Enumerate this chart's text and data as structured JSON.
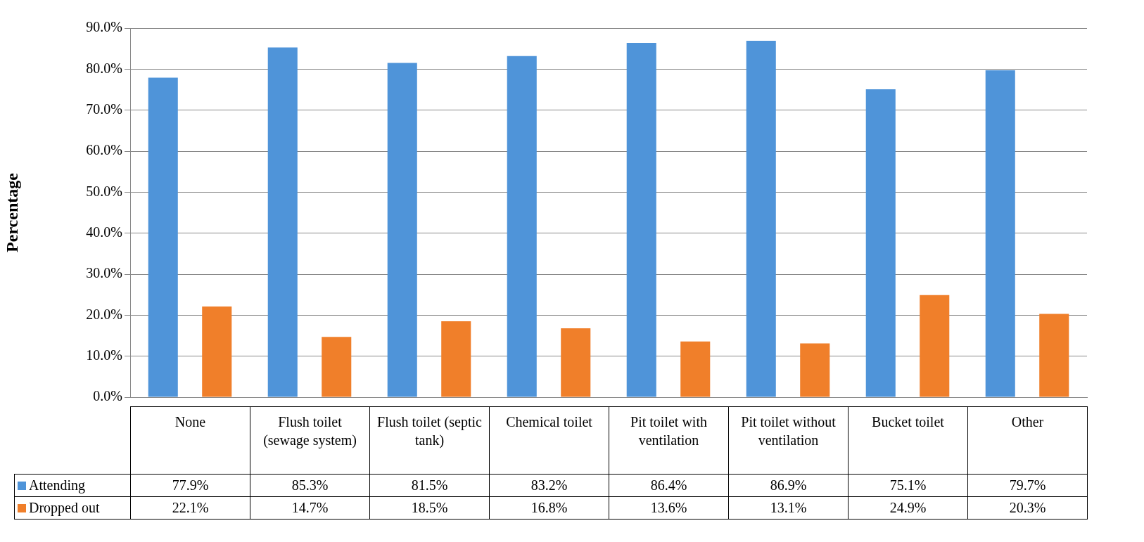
{
  "chart_data": {
    "type": "bar",
    "ylabel": "Percentage",
    "categories": [
      "None",
      "Flush toilet (sewage system)",
      "Flush toilet (septic tank)",
      "Chemical toilet",
      "Pit toilet with ventilation",
      "Pit toilet without ventilation",
      "Bucket toilet",
      "Other"
    ],
    "series": [
      {
        "name": "Attending",
        "color": "#4f94d9",
        "values": [
          77.9,
          85.3,
          81.5,
          83.2,
          86.4,
          86.9,
          75.1,
          79.7
        ],
        "value_labels": [
          "77.9%",
          "85.3%",
          "81.5%",
          "83.2%",
          "86.4%",
          "86.9%",
          "75.1%",
          "79.7%"
        ]
      },
      {
        "name": "Dropped out",
        "color": "#f07f2a",
        "values": [
          22.1,
          14.7,
          18.5,
          16.8,
          13.6,
          13.1,
          24.9,
          20.3
        ],
        "value_labels": [
          "22.1%",
          "14.7%",
          "18.5%",
          "16.8%",
          "13.6%",
          "13.1%",
          "24.9%",
          "20.3%"
        ]
      }
    ],
    "ylim": [
      0,
      90
    ],
    "yticks": [
      {
        "value": 0,
        "label": "0.0%"
      },
      {
        "value": 10,
        "label": "10.0%"
      },
      {
        "value": 20,
        "label": "20.0%"
      },
      {
        "value": 30,
        "label": "30.0%"
      },
      {
        "value": 40,
        "label": "40.0%"
      },
      {
        "value": 50,
        "label": "50.0%"
      },
      {
        "value": 60,
        "label": "60.0%"
      },
      {
        "value": 70,
        "label": "70.0%"
      },
      {
        "value": 80,
        "label": "80.0%"
      },
      {
        "value": 90,
        "label": "90.0%"
      }
    ],
    "grid": "y",
    "legend": "bottom left"
  }
}
